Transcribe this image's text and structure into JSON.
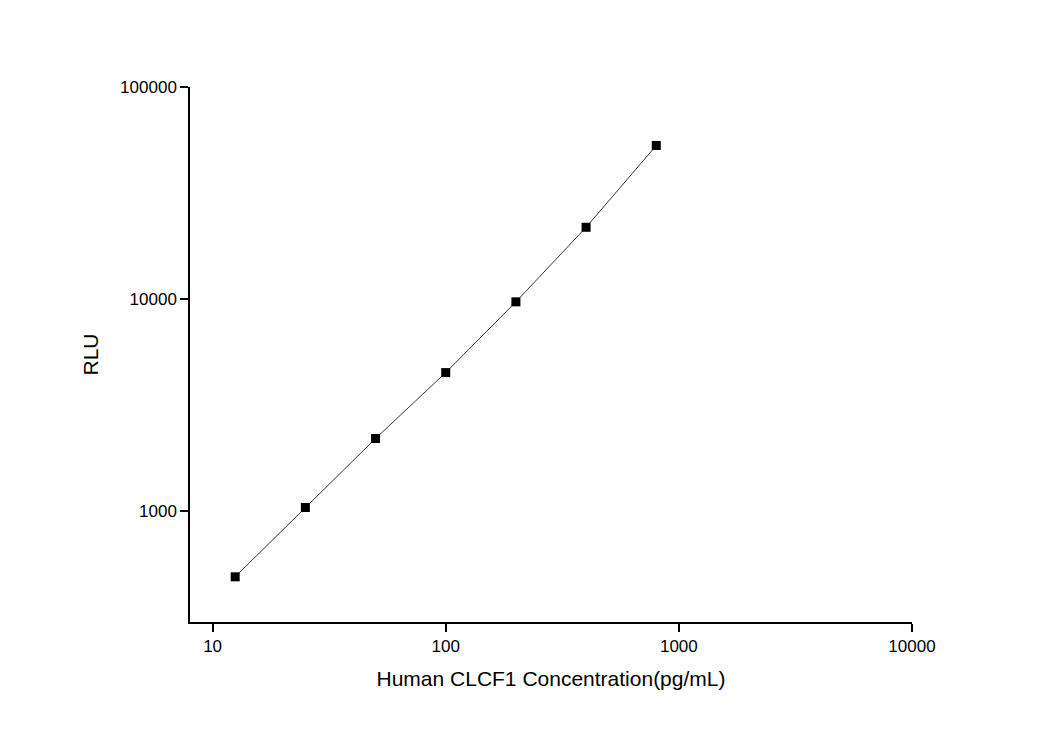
{
  "chart_data": {
    "type": "line",
    "x_label": "Human CLCF1 Concentration(pg/mL)",
    "y_label": "RLU",
    "x": [
      12.5,
      25,
      50,
      100,
      200,
      400,
      800
    ],
    "values": [
      490,
      1040,
      2200,
      4500,
      9700,
      21800,
      53000
    ],
    "color": "#000000",
    "marker": "square",
    "line_style": "solid",
    "log": true,
    "grid": false,
    "xlim": [
      8,
      10000
    ],
    "xticks": [
      10,
      100,
      1000,
      10000
    ],
    "ylim": [
      300,
      100000
    ],
    "yticks": [
      1000,
      10000,
      100000
    ]
  }
}
